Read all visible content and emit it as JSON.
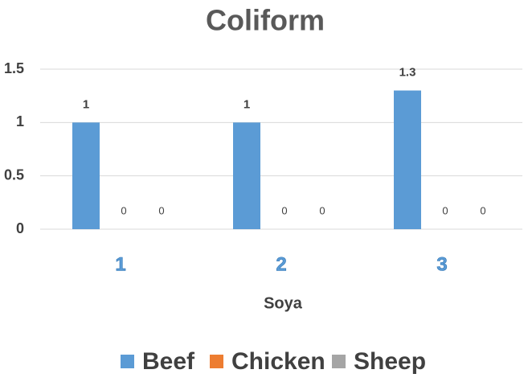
{
  "chart_data": {
    "type": "bar",
    "title": "Coliform",
    "x_label": "Soya",
    "categories": [
      "1",
      "2",
      "3"
    ],
    "series": [
      {
        "name": "Beef",
        "color": "#5b9bd5",
        "values": [
          1,
          1,
          1.3
        ]
      },
      {
        "name": "Chicken",
        "color": "#ed7d31",
        "values": [
          0,
          0,
          0
        ]
      },
      {
        "name": "Sheep",
        "color": "#a5a5a5",
        "values": [
          0,
          0,
          0
        ]
      }
    ],
    "ylim": [
      0,
      1.5
    ],
    "yticks": [
      0,
      0.5,
      1,
      1.5
    ],
    "grid": true,
    "legend": "bottom"
  }
}
